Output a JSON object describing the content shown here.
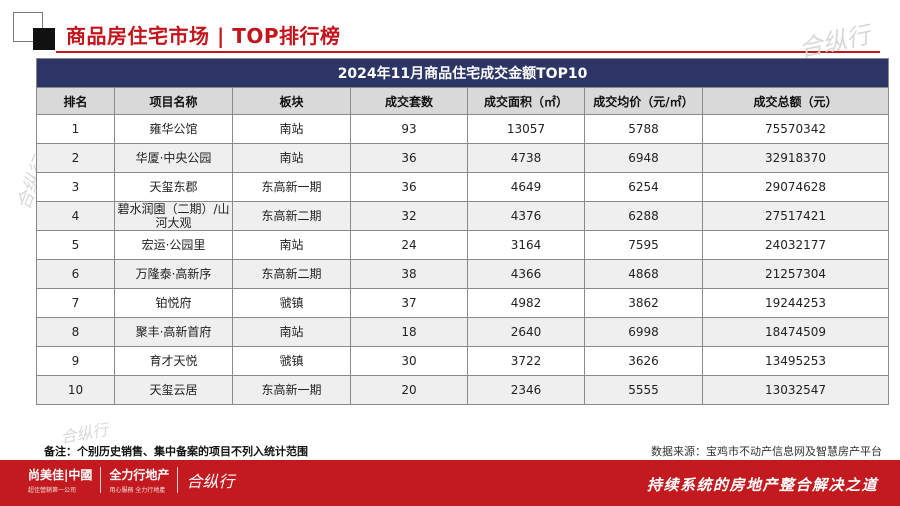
{
  "header": {
    "title": "商品房住宅市场 | TOP排行榜"
  },
  "watermark": {
    "text": "合纵行"
  },
  "table": {
    "caption": "2024年11月商品住宅成交金额TOP10",
    "columns": [
      "排名",
      "项目名称",
      "板块",
      "成交套数",
      "成交面积（㎡）",
      "成交均价（元/㎡）",
      "成交总额（元）"
    ],
    "rows": [
      [
        "1",
        "雍华公馆",
        "南站",
        "93",
        "13057",
        "5788",
        "75570342"
      ],
      [
        "2",
        "华厦·中央公园",
        "南站",
        "36",
        "4738",
        "6948",
        "32918370"
      ],
      [
        "3",
        "天玺东郡",
        "东高新一期",
        "36",
        "4649",
        "6254",
        "29074628"
      ],
      [
        "4",
        "碧水润園（二期）/山河大观",
        "东高新二期",
        "32",
        "4376",
        "6288",
        "27517421"
      ],
      [
        "5",
        "宏运·公园里",
        "南站",
        "24",
        "3164",
        "7595",
        "24032177"
      ],
      [
        "6",
        "万隆泰·高新序",
        "东高新二期",
        "38",
        "4366",
        "4868",
        "21257304"
      ],
      [
        "7",
        "铂悦府",
        "虢镇",
        "37",
        "4982",
        "3862",
        "19244253"
      ],
      [
        "8",
        "聚丰·高新首府",
        "南站",
        "18",
        "2640",
        "6998",
        "18474509"
      ],
      [
        "9",
        "育才天悦",
        "虢镇",
        "30",
        "3722",
        "3626",
        "13495253"
      ],
      [
        "10",
        "天玺云居",
        "东高新一期",
        "20",
        "2346",
        "5555",
        "13032547"
      ]
    ]
  },
  "note": "备注：个别历史销售、集中备案的项目不列入统计范围",
  "source": "数据来源：宝鸡市不动产信息网及智慧房产平台",
  "footer": {
    "brands": [
      {
        "name": "尚美佳|中國",
        "tagline": "超佳營銷第一公司"
      },
      {
        "name": "全力行地产",
        "tagline": "用心服務 全力行地產"
      },
      {
        "name": "合纵行",
        "tagline": ""
      }
    ],
    "slogan": "持续系统的房地产整合解决之道"
  },
  "colors": {
    "brand_red": "#c4141c",
    "table_header_navy": "#2d3566"
  }
}
